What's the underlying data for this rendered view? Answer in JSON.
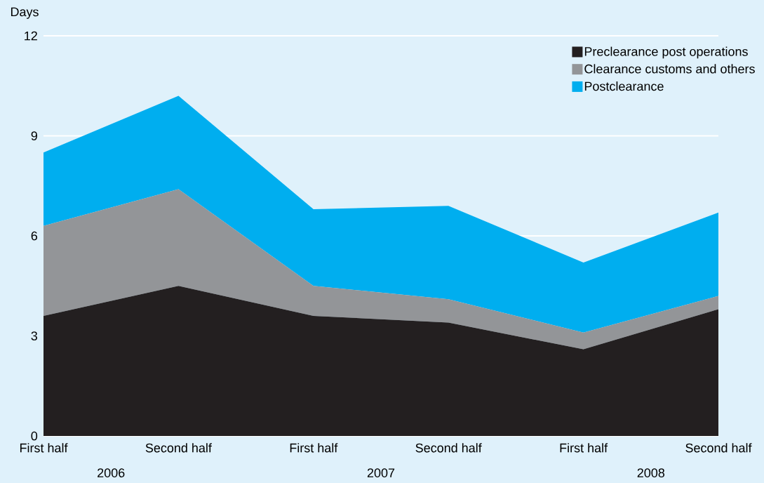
{
  "chart_data": {
    "type": "area",
    "stacked": true,
    "ylabel": "Days",
    "categories": [
      "First half",
      "Second half",
      "First half",
      "Second half",
      "First half",
      "Second half"
    ],
    "annotations": [
      "2006",
      "2007",
      "2008"
    ],
    "series": [
      {
        "name": "Preclearance post operations",
        "color": "#231f20",
        "values": [
          3.6,
          4.5,
          3.6,
          3.4,
          2.6,
          3.8
        ]
      },
      {
        "name": "Clearance customs and others",
        "color": "#939598",
        "values": [
          2.7,
          2.9,
          0.9,
          0.7,
          0.5,
          0.4
        ]
      },
      {
        "name": "Postclearance",
        "color": "#00aeef",
        "values": [
          2.2,
          2.8,
          2.3,
          2.8,
          2.1,
          2.5
        ]
      }
    ],
    "ylim": [
      0,
      12
    ],
    "yticks": [
      0,
      3,
      6,
      9,
      12
    ],
    "grid": "y",
    "legend": "top right"
  }
}
